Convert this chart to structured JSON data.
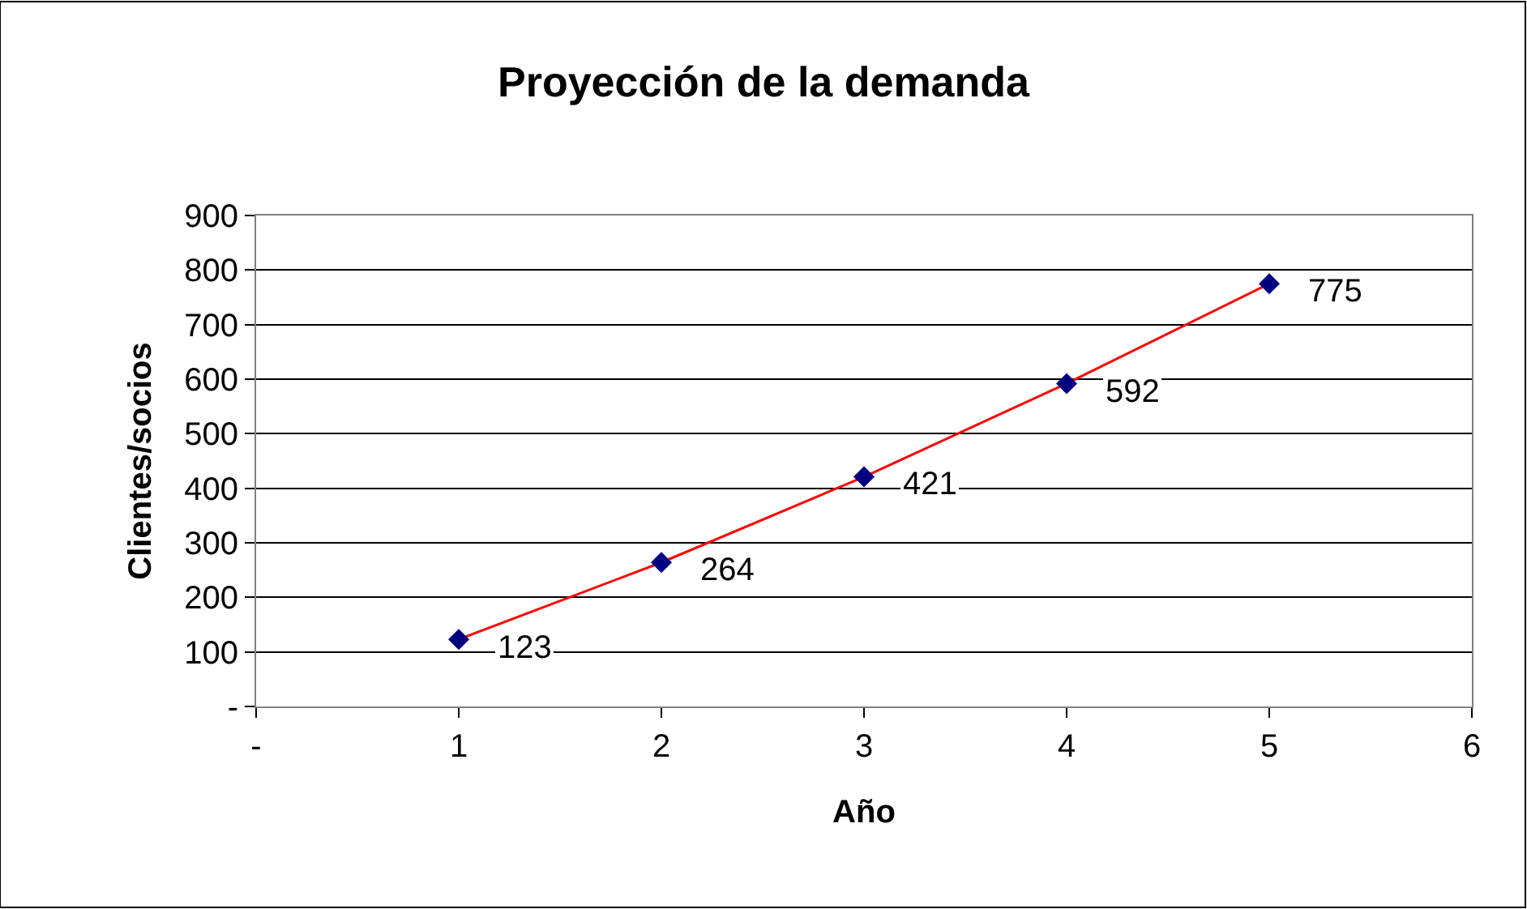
{
  "chart_data": {
    "type": "line",
    "title": "Proyección de la demanda",
    "xlabel": "Año",
    "ylabel": "Clientes/socios",
    "x": [
      1,
      2,
      3,
      4,
      5
    ],
    "series": [
      {
        "color": "#ff0000",
        "colors": [
          "#000080",
          "#000080",
          "#000080",
          "#000080",
          "#000080"
        ],
        "values": [
          123,
          264,
          421,
          592,
          775
        ]
      }
    ],
    "xlim": [
      0,
      6
    ],
    "xticks": [
      {
        "value": 0,
        "label": "-"
      },
      1,
      2,
      3,
      4,
      5,
      6
    ],
    "ylim": [
      0,
      900
    ],
    "yticks": [
      {
        "value": 0,
        "label": "-"
      },
      100,
      200,
      300,
      400,
      500,
      600,
      700,
      800,
      900
    ],
    "grid": "y",
    "marker": "diamond",
    "line_style": "solid",
    "data_labels": true,
    "legend": false
  }
}
